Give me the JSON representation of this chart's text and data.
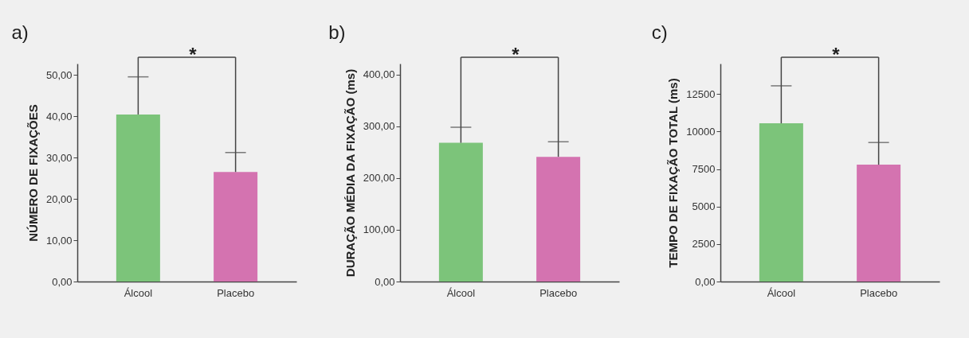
{
  "chart_data": [
    {
      "type": "bar",
      "title": "a)",
      "ylabel": "NÚMERO DE FIXAÇÕES",
      "categories": [
        "Álcool",
        "Placebo"
      ],
      "values": [
        40.4,
        26.5
      ],
      "colors": [
        "#7cc47a",
        "#d473b0"
      ],
      "errors": [
        [
          40.4,
          49.5
        ],
        [
          26.5,
          31.2
        ]
      ],
      "ylim": [
        0,
        52.7
      ],
      "yticks": [
        {
          "value": 0,
          "label": "0,00"
        },
        {
          "value": 10,
          "label": "10,00"
        },
        {
          "value": 20,
          "label": "20,00"
        },
        {
          "value": 30,
          "label": "30,00"
        },
        {
          "value": 40,
          "label": "40,00"
        },
        {
          "value": 50,
          "label": "50,00"
        }
      ],
      "annotations": [
        "*"
      ]
    },
    {
      "type": "bar",
      "title": "b)",
      "ylabel": "DURAÇÃO MÉDIA DA FIXAÇÃO (ms)",
      "categories": [
        "Álcool",
        "Placebo"
      ],
      "values": [
        268,
        241
      ],
      "colors": [
        "#7cc47a",
        "#d473b0"
      ],
      "errors": [
        [
          268,
          298
        ],
        [
          241,
          270
        ]
      ],
      "ylim": [
        0,
        421
      ],
      "yticks": [
        {
          "value": 0,
          "label": "0,00"
        },
        {
          "value": 100,
          "label": "100,00"
        },
        {
          "value": 200,
          "label": "200,00"
        },
        {
          "value": 300,
          "label": "300,00"
        },
        {
          "value": 400,
          "label": "400,00"
        }
      ],
      "annotations": [
        "*"
      ]
    },
    {
      "type": "bar",
      "title": "c)",
      "ylabel": "TEMPO DE FIXAÇÃO TOTAL (ms)",
      "categories": [
        "Álcool",
        "Placebo"
      ],
      "values": [
        10550,
        7790
      ],
      "colors": [
        "#7cc47a",
        "#d473b0"
      ],
      "errors": [
        [
          10550,
          13050
        ],
        [
          7790,
          9270
        ]
      ],
      "ylim": [
        0,
        14530
      ],
      "yticks": [
        {
          "value": 0,
          "label": "0,00"
        },
        2500,
        5000,
        7500,
        10000,
        12500
      ],
      "annotations": [
        "*"
      ]
    }
  ]
}
